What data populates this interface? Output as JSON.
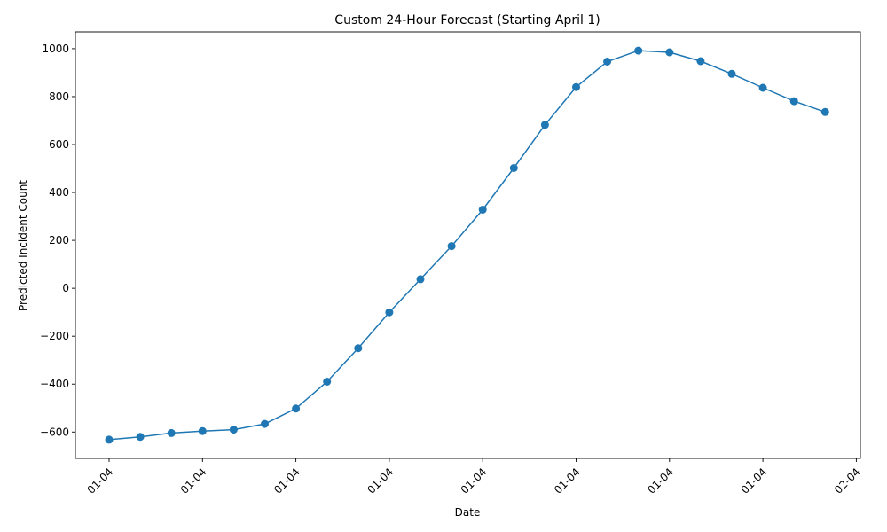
{
  "chart_data": {
    "type": "line",
    "title": "Custom 24-Hour Forecast (Starting April 1)",
    "xlabel": "Date",
    "ylabel": "Predicted Incident Count",
    "x_tick_labels": [
      "01-04",
      "01-04",
      "01-04",
      "01-04",
      "01-04",
      "01-04",
      "01-04",
      "01-04",
      "02-04"
    ],
    "y_ticks": [
      -600,
      -400,
      -200,
      0,
      200,
      400,
      600,
      800,
      1000
    ],
    "ylim": [
      -710,
      1070
    ],
    "grid": false,
    "legend": "none",
    "series": [
      {
        "color": "#1f77b4",
        "marker": "circle",
        "values": [
          -632,
          -620,
          -604,
          -596,
          -590,
          -566,
          -502,
          -390,
          -250,
          -100,
          38,
          176,
          328,
          502,
          682,
          840,
          946,
          992,
          985,
          948,
          895,
          837,
          781,
          736
        ]
      }
    ]
  }
}
